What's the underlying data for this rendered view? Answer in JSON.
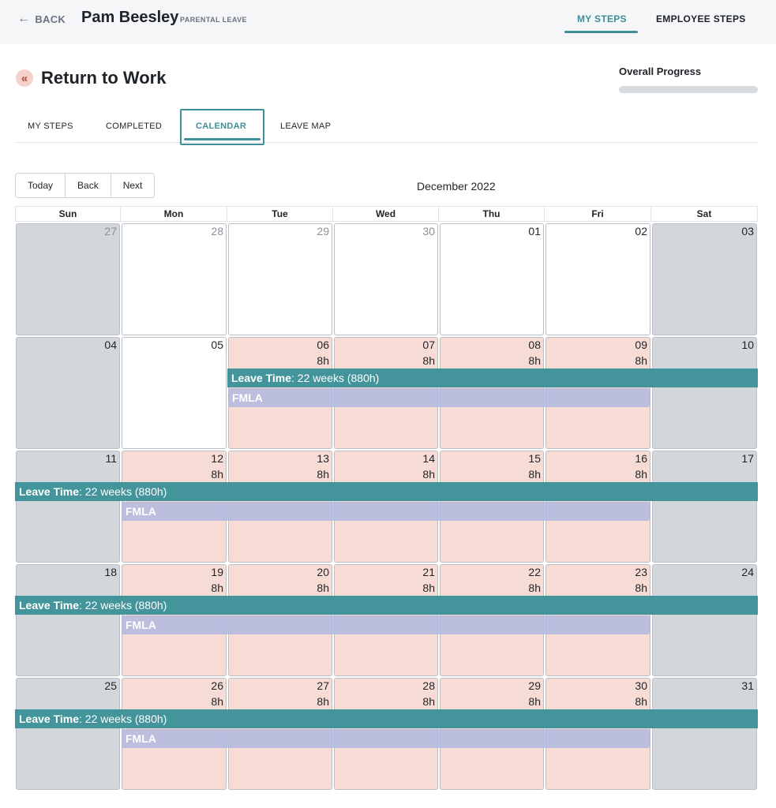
{
  "topbar": {
    "back_label": "BACK",
    "employee_name": "Pam Beesley",
    "leave_type": "PARENTAL LEAVE",
    "tabs": [
      {
        "label": "MY STEPS",
        "active": true
      },
      {
        "label": "EMPLOYEE STEPS",
        "active": false
      }
    ]
  },
  "header": {
    "collapse_icon": "«",
    "title": "Return to Work",
    "progress_label": "Overall Progress",
    "progress_value": 0
  },
  "sub_tabs": [
    {
      "label": "MY STEPS",
      "active": false
    },
    {
      "label": "COMPLETED",
      "active": false
    },
    {
      "label": "CALENDAR",
      "active": true
    },
    {
      "label": "LEAVE MAP",
      "active": false
    }
  ],
  "toolbar": {
    "today": "Today",
    "back": "Back",
    "next": "Next",
    "month": "December 2022"
  },
  "calendar": {
    "days_of_week": [
      "Sun",
      "Mon",
      "Tue",
      "Wed",
      "Thu",
      "Fri",
      "Sat"
    ],
    "weeks": [
      {
        "days": [
          {
            "num": "27",
            "other": true,
            "type": "weekend"
          },
          {
            "num": "28",
            "other": true,
            "type": "white"
          },
          {
            "num": "29",
            "other": true,
            "type": "white"
          },
          {
            "num": "30",
            "other": true,
            "type": "white"
          },
          {
            "num": "01",
            "type": "white"
          },
          {
            "num": "02",
            "type": "white"
          },
          {
            "num": "03",
            "type": "weekend"
          }
        ]
      },
      {
        "days": [
          {
            "num": "04",
            "type": "weekend"
          },
          {
            "num": "05",
            "type": "white"
          },
          {
            "num": "06",
            "type": "leave",
            "hours": "8h"
          },
          {
            "num": "07",
            "type": "leave",
            "hours": "8h"
          },
          {
            "num": "08",
            "type": "leave",
            "hours": "8h"
          },
          {
            "num": "09",
            "type": "leave",
            "hours": "8h"
          },
          {
            "num": "10",
            "type": "weekend"
          }
        ],
        "leave_bar": {
          "start": 2,
          "end": 6
        },
        "fmla_bar": {
          "start": 2,
          "end": 5
        }
      },
      {
        "days": [
          {
            "num": "11",
            "type": "weekend"
          },
          {
            "num": "12",
            "type": "leave",
            "hours": "8h"
          },
          {
            "num": "13",
            "type": "leave",
            "hours": "8h"
          },
          {
            "num": "14",
            "type": "leave",
            "hours": "8h"
          },
          {
            "num": "15",
            "type": "leave",
            "hours": "8h"
          },
          {
            "num": "16",
            "type": "leave",
            "hours": "8h"
          },
          {
            "num": "17",
            "type": "weekend"
          }
        ],
        "leave_bar": {
          "start": 0,
          "end": 6
        },
        "fmla_bar": {
          "start": 1,
          "end": 5
        }
      },
      {
        "days": [
          {
            "num": "18",
            "type": "weekend"
          },
          {
            "num": "19",
            "type": "leave",
            "hours": "8h"
          },
          {
            "num": "20",
            "type": "leave",
            "hours": "8h"
          },
          {
            "num": "21",
            "type": "leave",
            "hours": "8h"
          },
          {
            "num": "22",
            "type": "leave",
            "hours": "8h"
          },
          {
            "num": "23",
            "type": "leave",
            "hours": "8h"
          },
          {
            "num": "24",
            "type": "weekend"
          }
        ],
        "leave_bar": {
          "start": 0,
          "end": 6
        },
        "fmla_bar": {
          "start": 1,
          "end": 5
        }
      },
      {
        "days": [
          {
            "num": "25",
            "type": "weekend"
          },
          {
            "num": "26",
            "type": "leave",
            "hours": "8h"
          },
          {
            "num": "27",
            "type": "leave",
            "hours": "8h"
          },
          {
            "num": "28",
            "type": "leave",
            "hours": "8h"
          },
          {
            "num": "29",
            "type": "leave",
            "hours": "8h"
          },
          {
            "num": "30",
            "type": "leave",
            "hours": "8h"
          },
          {
            "num": "31",
            "type": "weekend"
          }
        ],
        "leave_bar": {
          "start": 0,
          "end": 6
        },
        "fmla_bar": {
          "start": 1,
          "end": 5
        }
      }
    ],
    "leave_event": {
      "title": "Leave Time",
      "detail": ": 22 weeks (880h)"
    },
    "fmla_event": {
      "label": "FMLA"
    }
  },
  "colors": {
    "accent": "#3e8f97",
    "leave_bar": "#43949b",
    "fmla_bar": "#b0badf",
    "leave_day": "#f7dcd6",
    "weekend_day": "#d3d6da"
  }
}
